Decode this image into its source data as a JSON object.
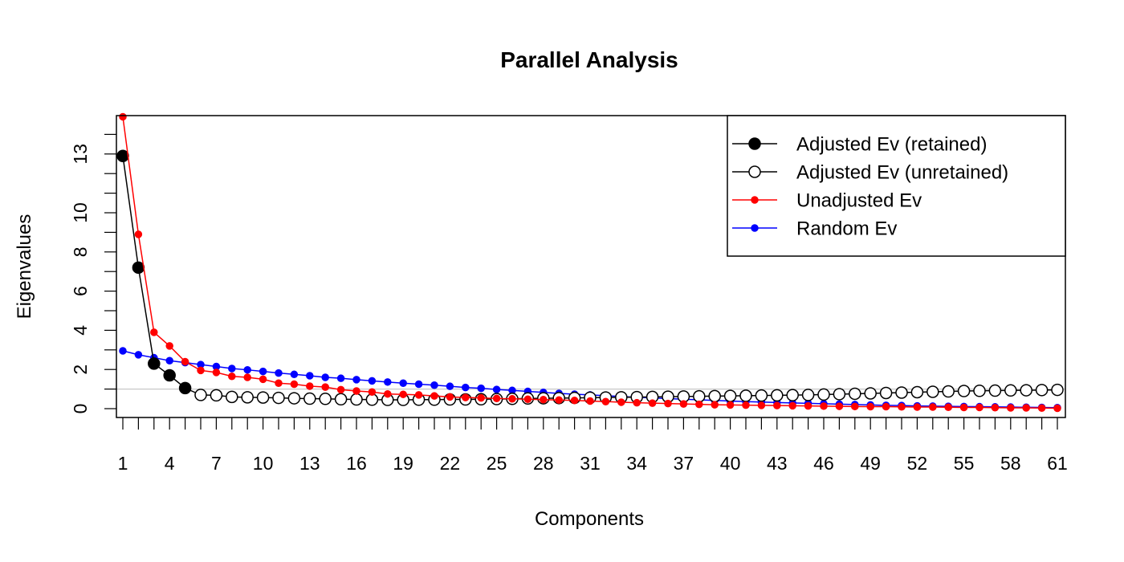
{
  "chart_data": {
    "type": "line",
    "title": "Parallel Analysis",
    "xlabel": "Components",
    "ylabel": "Eigenvalues",
    "xlim": [
      1,
      61
    ],
    "ylim": [
      0,
      15
    ],
    "x_tick_labels": [
      "1",
      "4",
      "7",
      "10",
      "13",
      "16",
      "19",
      "22",
      "25",
      "28",
      "31",
      "34",
      "37",
      "40",
      "43",
      "46",
      "49",
      "52",
      "55",
      "58",
      "61"
    ],
    "y_tick_labels": [
      "0",
      "2",
      "4",
      "6",
      "8",
      "10",
      "13"
    ],
    "reference_line": 1,
    "legend_position": "top-right",
    "retained_count": 5,
    "series": [
      {
        "name": "Adjusted Ev (retained)",
        "color": "#000000",
        "marker": "filled-circle",
        "values": [
          12.9,
          7.2,
          2.3,
          1.7,
          1.05
        ]
      },
      {
        "name": "Adjusted Ev (unretained)",
        "color": "#000000",
        "marker": "open-circle",
        "values": [
          0.7,
          0.68,
          0.6,
          0.58,
          0.57,
          0.55,
          0.53,
          0.51,
          0.5,
          0.48,
          0.47,
          0.46,
          0.45,
          0.45,
          0.46,
          0.46,
          0.47,
          0.47,
          0.48,
          0.49,
          0.5,
          0.52,
          0.53,
          0.54,
          0.55,
          0.56,
          0.57,
          0.58,
          0.59,
          0.6,
          0.61,
          0.62,
          0.63,
          0.64,
          0.65,
          0.66,
          0.67,
          0.68,
          0.69,
          0.7,
          0.72,
          0.74,
          0.76,
          0.78,
          0.8,
          0.82,
          0.84,
          0.86,
          0.88,
          0.9,
          0.91,
          0.92,
          0.93,
          0.94,
          0.95,
          0.96
        ]
      },
      {
        "name": "Unadjusted Ev",
        "color": "#ff0000",
        "marker": "small-dot",
        "values": [
          14.9,
          8.9,
          3.9,
          3.2,
          2.4,
          1.95,
          1.85,
          1.65,
          1.6,
          1.5,
          1.3,
          1.25,
          1.15,
          1.1,
          0.97,
          0.9,
          0.85,
          0.75,
          0.73,
          0.7,
          0.65,
          0.6,
          0.57,
          0.55,
          0.52,
          0.5,
          0.48,
          0.46,
          0.44,
          0.42,
          0.39,
          0.36,
          0.33,
          0.3,
          0.28,
          0.26,
          0.24,
          0.22,
          0.2,
          0.19,
          0.18,
          0.17,
          0.16,
          0.15,
          0.14,
          0.13,
          0.12,
          0.11,
          0.1,
          0.1,
          0.09,
          0.08,
          0.08,
          0.07,
          0.06,
          0.06,
          0.05,
          0.04,
          0.04,
          0.03,
          0.02
        ]
      },
      {
        "name": "Random Ev",
        "color": "#0000ff",
        "marker": "small-dot",
        "values": [
          2.95,
          2.75,
          2.6,
          2.45,
          2.35,
          2.25,
          2.15,
          2.05,
          1.98,
          1.9,
          1.82,
          1.75,
          1.68,
          1.6,
          1.55,
          1.48,
          1.42,
          1.36,
          1.3,
          1.25,
          1.2,
          1.14,
          1.08,
          1.04,
          0.98,
          0.93,
          0.88,
          0.83,
          0.78,
          0.74,
          0.7,
          0.66,
          0.62,
          0.58,
          0.55,
          0.51,
          0.48,
          0.45,
          0.42,
          0.39,
          0.36,
          0.34,
          0.31,
          0.29,
          0.27,
          0.25,
          0.23,
          0.21,
          0.19,
          0.17,
          0.16,
          0.14,
          0.13,
          0.12,
          0.11,
          0.1,
          0.09,
          0.08,
          0.07,
          0.06,
          0.05
        ]
      }
    ]
  }
}
